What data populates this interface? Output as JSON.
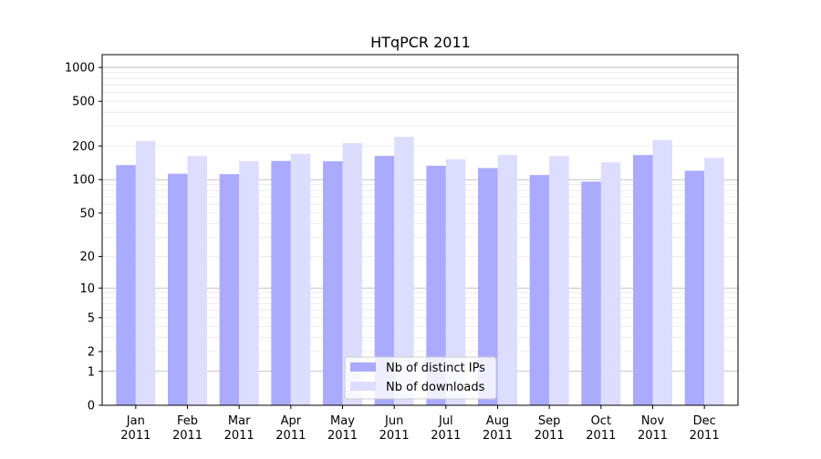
{
  "chart_data": {
    "type": "bar",
    "title": "HTqPCR 2011",
    "xlabel": "",
    "ylabel": "",
    "scale": "log(1+y)",
    "ylim": [
      0,
      1300
    ],
    "yticks": [
      0,
      1,
      2,
      5,
      10,
      20,
      50,
      100,
      200,
      500,
      1000
    ],
    "grid": true,
    "legend_position": "bottom-center",
    "categories": [
      "Jan\n2011",
      "Feb\n2011",
      "Mar\n2011",
      "Apr\n2011",
      "May\n2011",
      "Jun\n2011",
      "Jul\n2011",
      "Aug\n2011",
      "Sep\n2011",
      "Oct\n2011",
      "Nov\n2011",
      "Dec\n2011"
    ],
    "series": [
      {
        "name": "Nb of distinct IPs",
        "color": "#aaaaff",
        "values": [
          135,
          113,
          112,
          147,
          146,
          163,
          133,
          127,
          110,
          96,
          166,
          120
        ]
      },
      {
        "name": "Nb of downloads",
        "color": "#ddddff",
        "values": [
          222,
          163,
          146,
          170,
          212,
          241,
          152,
          166,
          163,
          143,
          226,
          157
        ]
      }
    ]
  }
}
